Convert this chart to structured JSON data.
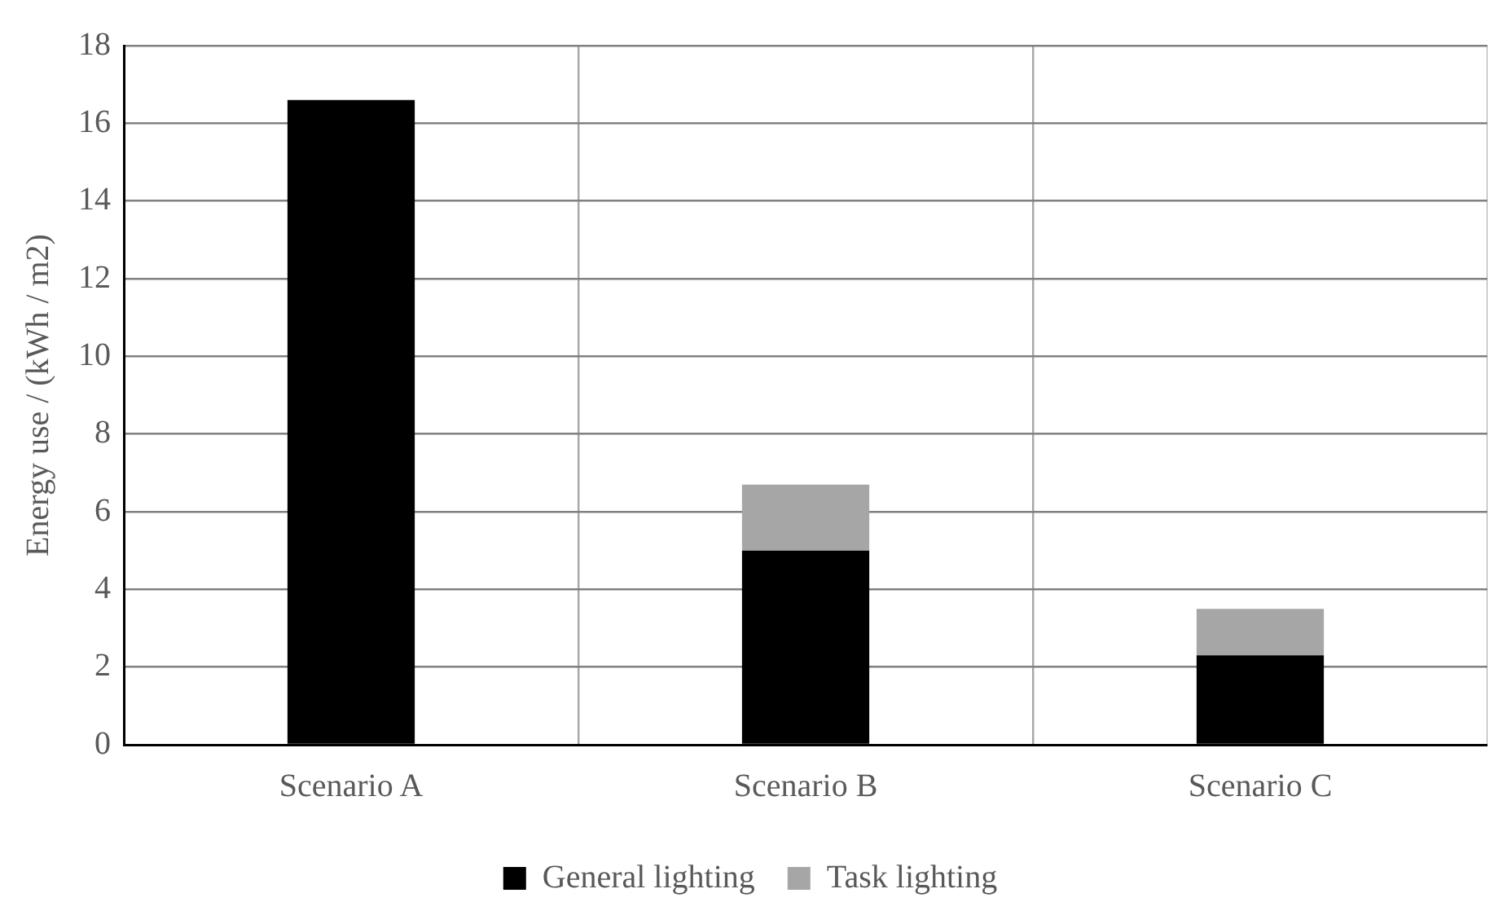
{
  "chart_data": {
    "type": "bar",
    "stacked": true,
    "ylabel": "Energy use / (kWh / m2)",
    "categories": [
      "Scenario A",
      "Scenario B",
      "Scenario C"
    ],
    "series": [
      {
        "name": "General lighting",
        "color": "#000000",
        "values": [
          16.6,
          5.0,
          2.3
        ]
      },
      {
        "name": "Task lighting",
        "color": "#a6a6a6",
        "values": [
          null,
          1.7,
          1.2
        ]
      }
    ],
    "ylim": [
      0,
      18
    ],
    "yticks": [
      0,
      2,
      4,
      6,
      8,
      10,
      12,
      14,
      16,
      18
    ],
    "grid": true,
    "legend": "bottom"
  }
}
